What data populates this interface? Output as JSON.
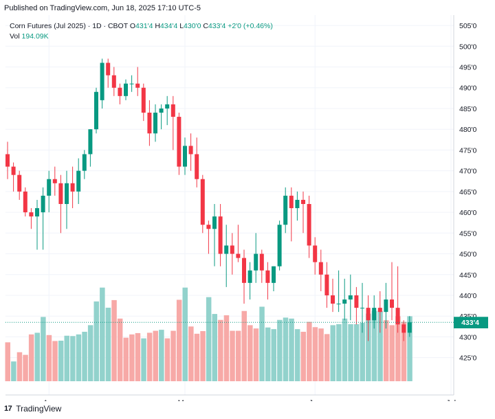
{
  "header": {
    "published": "Published on TradingView.com, Jun 18, 2025 17:10 UTC-5"
  },
  "footer": {
    "brand": "TradingView",
    "logo_text": "17"
  },
  "colors": {
    "up": "#089981",
    "down": "#f23645",
    "up_vol": "#92d2cc",
    "down_vol": "#f7a9a7",
    "grid": "#f0f3fa",
    "text": "#131722"
  },
  "chart_data": {
    "type": "candlestick",
    "legend": {
      "symbol": "Corn Futures (Jul 2025) · 1D · CBOT",
      "o_label": "O",
      "o": "431'4",
      "h_label": "H",
      "h": "434'4",
      "l_label": "L",
      "l": "430'0",
      "c_label": "C",
      "c": "433'4",
      "change": "+2'0 (+0.46%)",
      "vol_label": "Vol",
      "vol": "194.09K"
    },
    "y_ticks": [
      "505'0",
      "500'0",
      "495'0",
      "490'0",
      "485'0",
      "480'0",
      "475'0",
      "470'0",
      "465'0",
      "460'0",
      "455'0",
      "450'0",
      "445'0",
      "440'0",
      "435'0",
      "430'0",
      "425'0"
    ],
    "ylim": [
      421.8,
      506.5
    ],
    "x_labels": [
      {
        "label": "Apr",
        "index": 7
      },
      {
        "label": "May",
        "index": 30
      },
      {
        "label": "Jun",
        "index": 52
      },
      {
        "label": "Jul",
        "index": 75
      }
    ],
    "last_price_label": "433'4",
    "last_price": 433.5,
    "last_volume_label": "194.09K",
    "candles": [
      [
        474,
        477,
        468,
        471
      ],
      [
        471,
        472,
        465,
        469
      ],
      [
        469,
        470,
        463,
        465
      ],
      [
        465,
        466,
        459,
        460
      ],
      [
        460,
        461,
        456,
        459
      ],
      [
        459,
        463,
        451,
        461
      ],
      [
        460,
        466,
        451,
        464
      ],
      [
        464,
        470,
        460,
        468
      ],
      [
        468,
        471,
        464,
        467
      ],
      [
        467,
        469,
        455,
        462
      ],
      [
        462,
        470,
        456,
        467
      ],
      [
        467,
        471,
        461,
        465
      ],
      [
        465,
        473,
        462,
        470
      ],
      [
        470,
        475,
        468,
        474
      ],
      [
        474,
        480,
        471,
        480
      ],
      [
        480,
        490,
        479,
        489
      ],
      [
        487,
        497,
        485,
        496
      ],
      [
        496,
        497,
        490,
        493
      ],
      [
        493,
        495,
        488,
        490
      ],
      [
        490,
        491,
        486,
        488
      ],
      [
        488,
        492,
        487,
        491
      ],
      [
        491,
        493,
        489,
        491
      ],
      [
        491,
        495,
        488,
        490
      ],
      [
        490,
        491,
        482,
        484
      ],
      [
        484,
        487,
        476,
        479
      ],
      [
        479,
        486,
        477,
        484
      ],
      [
        484,
        486,
        480,
        485
      ],
      [
        485,
        488,
        481,
        486
      ],
      [
        486,
        488,
        475,
        483
      ],
      [
        483,
        484,
        469,
        471
      ],
      [
        471,
        478,
        469,
        476
      ],
      [
        476,
        479,
        470,
        474
      ],
      [
        474,
        478,
        466,
        468
      ],
      [
        468,
        469,
        455,
        457
      ],
      [
        457,
        458,
        450,
        456
      ],
      [
        456,
        462,
        447,
        459
      ],
      [
        459,
        462,
        447,
        450
      ],
      [
        450,
        457,
        442,
        452
      ],
      [
        452,
        455,
        445,
        450
      ],
      [
        450,
        457,
        448,
        449
      ],
      [
        449,
        451,
        438,
        443
      ],
      [
        443,
        448,
        439,
        446
      ],
      [
        446,
        455,
        443,
        450
      ],
      [
        450,
        451,
        443,
        446
      ],
      [
        446,
        448,
        439,
        443
      ],
      [
        443,
        447,
        441,
        447
      ],
      [
        447,
        458,
        446,
        457
      ],
      [
        457,
        466,
        455,
        464
      ],
      [
        464,
        466,
        453,
        461
      ],
      [
        461,
        465,
        458,
        463
      ],
      [
        463,
        465,
        455,
        462
      ],
      [
        462,
        464,
        449,
        452
      ],
      [
        452,
        454,
        445,
        448
      ],
      [
        448,
        451,
        441,
        445
      ],
      [
        445,
        448,
        437,
        440
      ],
      [
        440,
        444,
        436,
        438
      ],
      [
        438,
        446,
        436,
        438
      ],
      [
        438,
        444,
        434,
        439
      ],
      [
        439,
        445,
        434,
        440
      ],
      [
        440,
        442,
        433,
        437
      ],
      [
        437,
        443,
        431,
        437
      ],
      [
        437,
        440,
        429,
        434
      ],
      [
        434,
        440,
        432,
        437
      ],
      [
        437,
        441,
        431,
        436
      ],
      [
        436,
        443,
        432,
        439
      ],
      [
        439,
        448,
        434,
        437
      ],
      [
        437,
        447,
        431,
        433
      ],
      [
        433,
        434,
        429,
        431
      ],
      [
        431,
        435,
        430,
        433.5
      ]
    ],
    "volume": [
      [
        1.18,
        "down"
      ],
      [
        0.6,
        "up"
      ],
      [
        0.88,
        "down"
      ],
      [
        0.8,
        "down"
      ],
      [
        1.42,
        "down"
      ],
      [
        1.47,
        "up"
      ],
      [
        1.95,
        "up"
      ],
      [
        1.4,
        "down"
      ],
      [
        1.22,
        "down"
      ],
      [
        1.23,
        "up"
      ],
      [
        1.38,
        "up"
      ],
      [
        1.37,
        "up"
      ],
      [
        1.42,
        "up"
      ],
      [
        1.5,
        "up"
      ],
      [
        1.7,
        "up"
      ],
      [
        2.42,
        "up"
      ],
      [
        2.84,
        "up"
      ],
      [
        2.23,
        "up"
      ],
      [
        2.46,
        "down"
      ],
      [
        1.9,
        "down"
      ],
      [
        1.32,
        "down"
      ],
      [
        1.42,
        "down"
      ],
      [
        1.46,
        "down"
      ],
      [
        1.3,
        "up"
      ],
      [
        1.47,
        "down"
      ],
      [
        1.53,
        "down"
      ],
      [
        1.56,
        "up"
      ],
      [
        1.3,
        "down"
      ],
      [
        1.53,
        "down"
      ],
      [
        2.47,
        "down"
      ],
      [
        2.84,
        "up"
      ],
      [
        1.66,
        "down"
      ],
      [
        1.44,
        "down"
      ],
      [
        1.52,
        "down"
      ],
      [
        2.55,
        "up"
      ],
      [
        2.04,
        "up"
      ],
      [
        1.86,
        "down"
      ],
      [
        2.0,
        "down"
      ],
      [
        1.53,
        "down"
      ],
      [
        1.53,
        "down"
      ],
      [
        2.13,
        "down"
      ],
      [
        1.7,
        "down"
      ],
      [
        1.6,
        "down"
      ],
      [
        2.26,
        "up"
      ],
      [
        1.63,
        "up"
      ],
      [
        1.58,
        "up"
      ],
      [
        1.86,
        "up"
      ],
      [
        1.93,
        "up"
      ],
      [
        1.9,
        "up"
      ],
      [
        1.58,
        "up"
      ],
      [
        1.5,
        "down"
      ],
      [
        1.8,
        "down"
      ],
      [
        1.64,
        "down"
      ],
      [
        1.6,
        "down"
      ],
      [
        1.43,
        "down"
      ],
      [
        1.7,
        "up"
      ],
      [
        1.73,
        "up"
      ],
      [
        1.9,
        "up"
      ],
      [
        1.73,
        "up"
      ],
      [
        1.73,
        "up"
      ],
      [
        1.77,
        "up"
      ],
      [
        2.05,
        "up"
      ],
      [
        2.13,
        "up"
      ],
      [
        2.13,
        "up"
      ],
      [
        1.85,
        "down"
      ],
      [
        1.7,
        "down"
      ],
      [
        1.97,
        "down"
      ],
      [
        1.8,
        "down"
      ],
      [
        1.97,
        "up"
      ]
    ]
  }
}
